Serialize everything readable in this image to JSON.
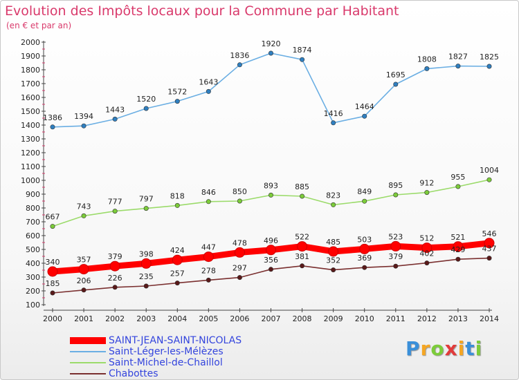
{
  "chart_data": {
    "type": "line",
    "title": "Evolution des Impôts locaux pour la Commune par Habitant",
    "subtitle": "(en € et par an)",
    "xlabel": "",
    "ylabel": "",
    "x": [
      "2000",
      "2001",
      "2002",
      "2003",
      "2004",
      "2005",
      "2006",
      "2007",
      "2008",
      "2009",
      "2010",
      "2011",
      "2012",
      "2013",
      "2014"
    ],
    "ylim": [
      100,
      2000
    ],
    "yticks": [
      100,
      200,
      300,
      400,
      500,
      600,
      700,
      800,
      900,
      1000,
      1100,
      1200,
      1300,
      1400,
      1500,
      1600,
      1700,
      1800,
      1900,
      2000
    ],
    "grid": false,
    "legend_position": "bottom-left",
    "series": [
      {
        "name": "SAINT-JEAN-SAINT-NICOLAS",
        "color": "#ff0000",
        "marker_color": "#ff0000",
        "values": [
          340,
          357,
          379,
          398,
          424,
          447,
          478,
          496,
          522,
          485,
          503,
          523,
          512,
          521,
          546
        ]
      },
      {
        "name": "Saint-Léger-les-Mélèzes",
        "color": "#6aaee3",
        "marker_color": "#2f7fc0",
        "values": [
          1386,
          1394,
          1443,
          1520,
          1572,
          1643,
          1836,
          1920,
          1874,
          1416,
          1464,
          1695,
          1808,
          1827,
          1825
        ]
      },
      {
        "name": "Saint-Michel-de-Chaillol",
        "color": "#9bdb6a",
        "marker_color": "#7ccc3a",
        "values": [
          667,
          743,
          777,
          797,
          818,
          846,
          850,
          893,
          885,
          823,
          849,
          895,
          912,
          955,
          1004
        ]
      },
      {
        "name": "Chabottes",
        "color": "#7a2f2f",
        "marker_color": "#5a1a1a",
        "values": [
          185,
          206,
          226,
          235,
          257,
          278,
          297,
          356,
          381,
          352,
          369,
          379,
          402,
          429,
          437
        ]
      }
    ]
  },
  "legend": {
    "items": [
      {
        "label": "SAINT-JEAN-SAINT-NICOLAS",
        "color": "#ff0000"
      },
      {
        "label": "Saint-Léger-les-Mélèzes",
        "color": "#6aaee3"
      },
      {
        "label": "Saint-Michel-de-Chaillol",
        "color": "#9bdb6a"
      },
      {
        "label": "Chabottes",
        "color": "#7a2f2f"
      }
    ]
  },
  "logo": {
    "letters": [
      "P",
      "r",
      "o",
      "x",
      "i",
      "t",
      "i"
    ],
    "colors": [
      "#3a8fd9",
      "#f5a623",
      "#7ccc3a",
      "#e23b3b",
      "#f5a623",
      "#3a8fd9",
      "#7ccc3a"
    ]
  }
}
